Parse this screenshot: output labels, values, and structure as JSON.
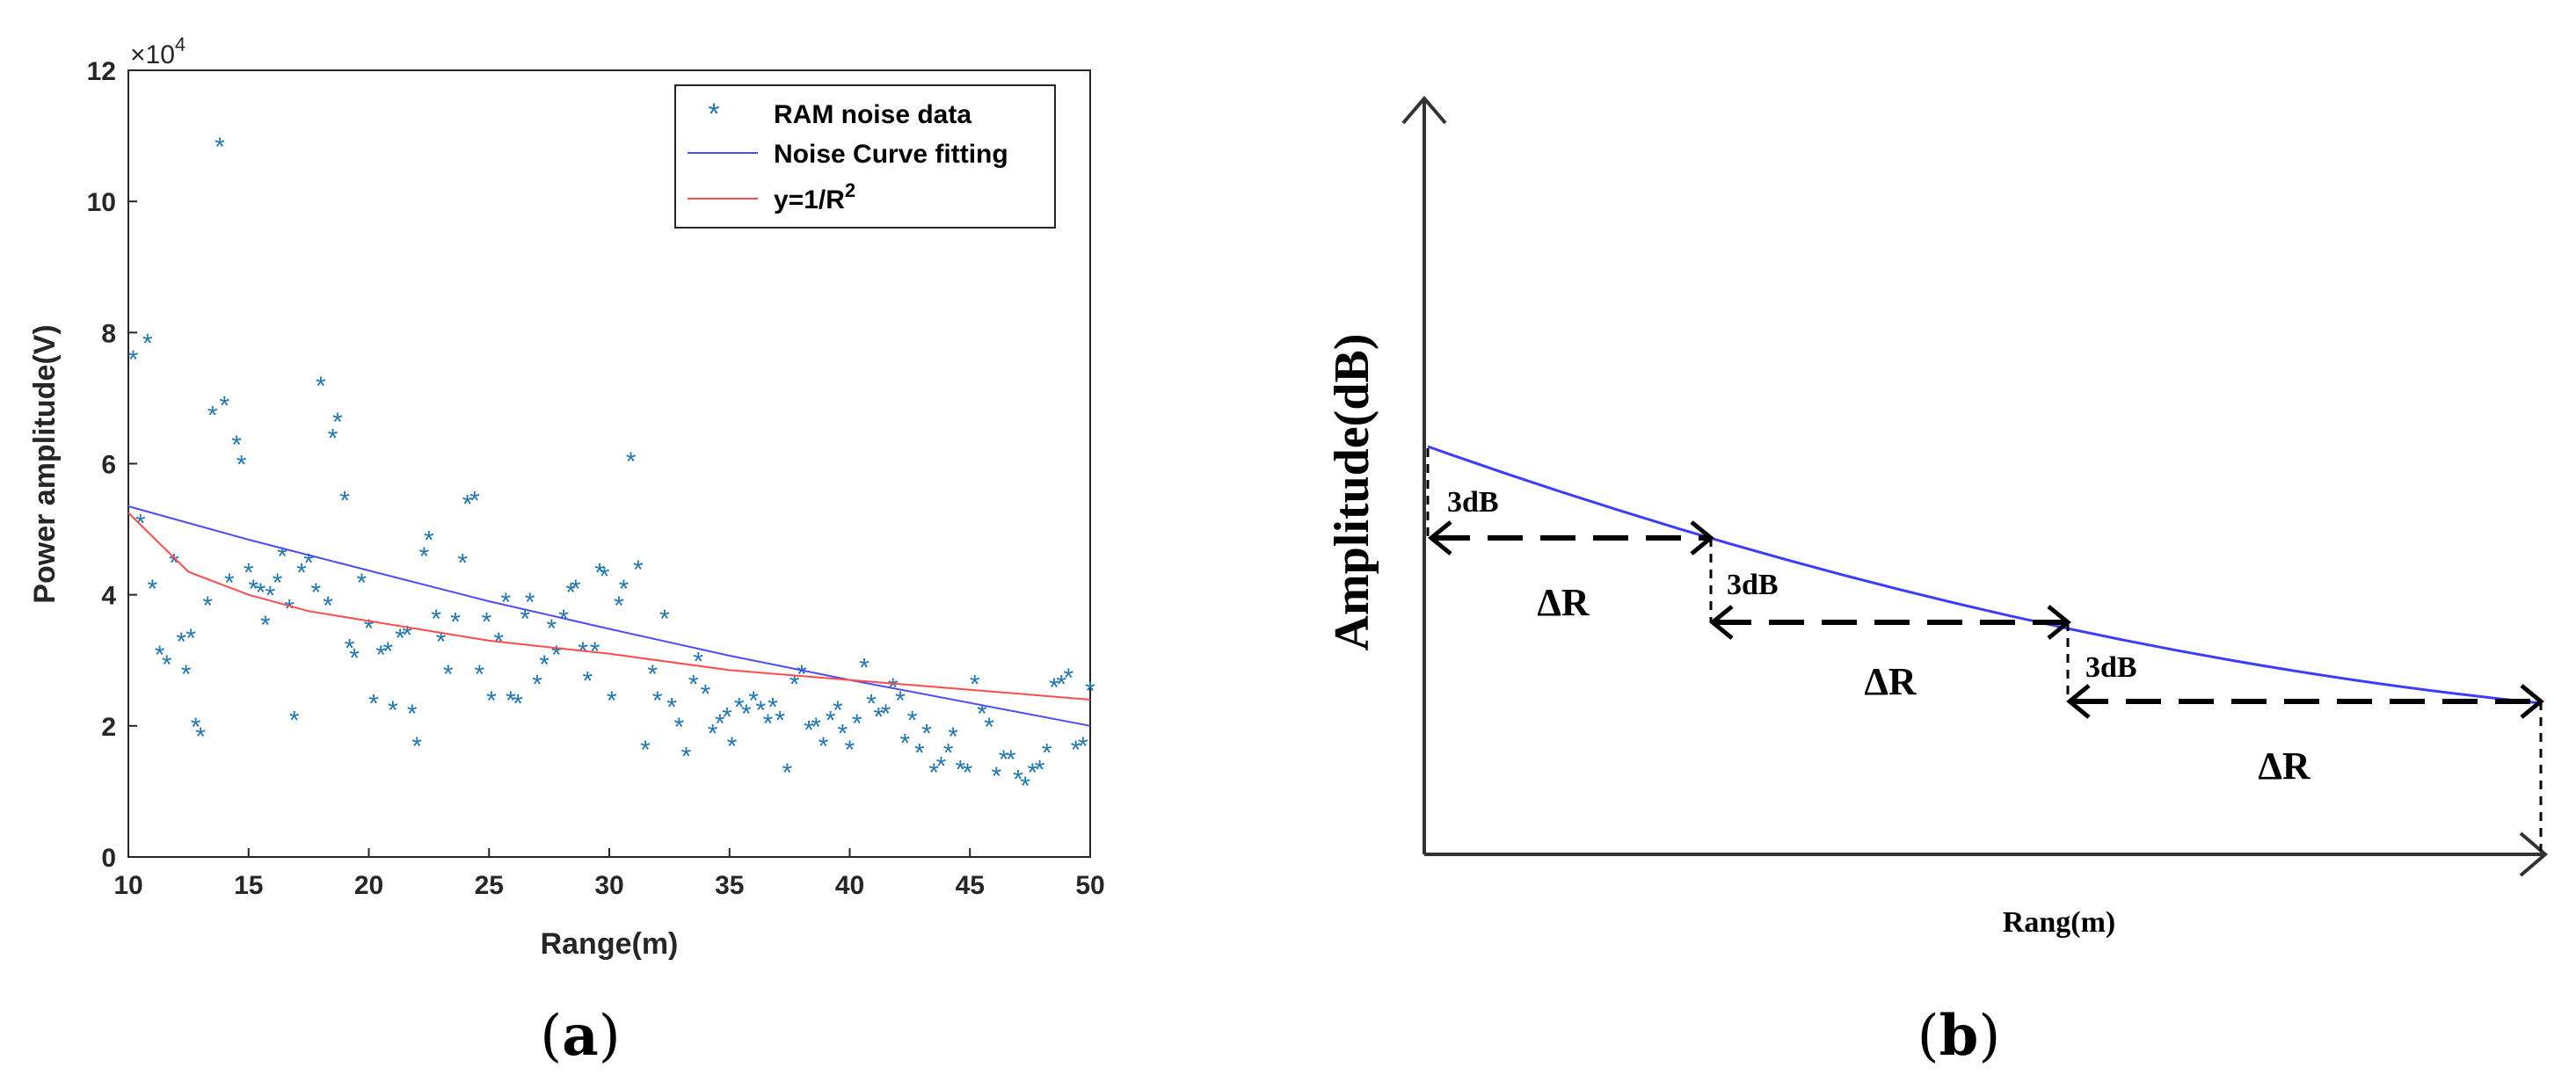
{
  "chart_data": [
    {
      "panel": "a",
      "type": "scatter",
      "caption_letter": "a",
      "xlabel": "Range(m)",
      "ylabel": "Power amplitude(V)",
      "y_exponent": "10",
      "y_exponent_power": "4",
      "xlim": [
        10,
        50
      ],
      "ylim": [
        0,
        120000
      ],
      "xticks": [
        10,
        15,
        20,
        25,
        30,
        35,
        40,
        45,
        50
      ],
      "yticks": [
        0,
        20000,
        40000,
        60000,
        80000,
        100000,
        120000
      ],
      "ytick_labels": [
        "0",
        "2",
        "4",
        "6",
        "8",
        "10",
        "12"
      ],
      "legend_position": "top-right",
      "legend": {
        "scatter_label": "RAM noise data",
        "fit_label": "Noise Curve fitting",
        "inv_label_prefix": "y=1/R",
        "inv_label_sup": "2"
      },
      "colors": {
        "scatter": "#1f77b4",
        "fit": "#4b4bff",
        "inverse": "#ff4b4b"
      },
      "series": [
        {
          "name": "RAM noise data",
          "kind": "scatter",
          "points": [
            [
              10.2,
              76000
            ],
            [
              10.5,
              51000
            ],
            [
              10.8,
              78500
            ],
            [
              11.0,
              41000
            ],
            [
              11.3,
              31000
            ],
            [
              11.6,
              29500
            ],
            [
              11.9,
              45000
            ],
            [
              12.2,
              33000
            ],
            [
              12.4,
              28000
            ],
            [
              12.6,
              33500
            ],
            [
              12.8,
              20000
            ],
            [
              13.0,
              18500
            ],
            [
              13.3,
              38500
            ],
            [
              13.5,
              67500
            ],
            [
              13.8,
              108500
            ],
            [
              14.0,
              69000
            ],
            [
              14.2,
              42000
            ],
            [
              14.5,
              63000
            ],
            [
              14.7,
              60000
            ],
            [
              15.0,
              43500
            ],
            [
              15.2,
              41000
            ],
            [
              15.5,
              40500
            ],
            [
              15.7,
              35500
            ],
            [
              15.9,
              40000
            ],
            [
              16.2,
              42000
            ],
            [
              16.4,
              46000
            ],
            [
              16.7,
              38000
            ],
            [
              16.9,
              21000
            ],
            [
              17.2,
              43500
            ],
            [
              17.5,
              45000
            ],
            [
              17.8,
              40500
            ],
            [
              18.0,
              72000
            ],
            [
              18.3,
              38500
            ],
            [
              18.5,
              64000
            ],
            [
              18.7,
              66500
            ],
            [
              19.0,
              54500
            ],
            [
              19.2,
              32000
            ],
            [
              19.4,
              30500
            ],
            [
              19.7,
              42000
            ],
            [
              20.0,
              35000
            ],
            [
              20.2,
              23500
            ],
            [
              20.5,
              31000
            ],
            [
              20.8,
              31500
            ],
            [
              21.0,
              22500
            ],
            [
              21.3,
              33500
            ],
            [
              21.6,
              34000
            ],
            [
              21.8,
              22000
            ],
            [
              22.0,
              17000
            ],
            [
              22.3,
              46000
            ],
            [
              22.5,
              48500
            ],
            [
              22.8,
              36500
            ],
            [
              23.0,
              33000
            ],
            [
              23.3,
              28000
            ],
            [
              23.6,
              36000
            ],
            [
              23.9,
              45000
            ],
            [
              24.1,
              54000
            ],
            [
              24.4,
              54500
            ],
            [
              24.6,
              28000
            ],
            [
              24.9,
              36000
            ],
            [
              25.1,
              24000
            ],
            [
              25.4,
              33000
            ],
            [
              25.7,
              39000
            ],
            [
              25.9,
              24000
            ],
            [
              26.2,
              23500
            ],
            [
              26.5,
              36500
            ],
            [
              26.7,
              39000
            ],
            [
              27.0,
              26500
            ],
            [
              27.3,
              29500
            ],
            [
              27.6,
              35000
            ],
            [
              27.8,
              31000
            ],
            [
              28.1,
              36500
            ],
            [
              28.4,
              40500
            ],
            [
              28.6,
              41000
            ],
            [
              28.9,
              31500
            ],
            [
              29.1,
              27000
            ],
            [
              29.4,
              31500
            ],
            [
              29.6,
              43500
            ],
            [
              29.8,
              43000
            ],
            [
              30.1,
              24000
            ],
            [
              30.4,
              38500
            ],
            [
              30.6,
              41000
            ],
            [
              30.9,
              60500
            ],
            [
              31.2,
              44000
            ],
            [
              31.5,
              16500
            ],
            [
              31.8,
              28000
            ],
            [
              32.0,
              24000
            ],
            [
              32.3,
              36500
            ],
            [
              32.6,
              23000
            ],
            [
              32.9,
              20000
            ],
            [
              33.2,
              15500
            ],
            [
              33.5,
              26500
            ],
            [
              33.7,
              30000
            ],
            [
              34.0,
              25000
            ],
            [
              34.3,
              19000
            ],
            [
              34.6,
              20500
            ],
            [
              34.9,
              21500
            ],
            [
              35.1,
              17000
            ],
            [
              35.4,
              23000
            ],
            [
              35.7,
              22000
            ],
            [
              36.0,
              24000
            ],
            [
              36.3,
              22500
            ],
            [
              36.6,
              20500
            ],
            [
              36.8,
              23000
            ],
            [
              37.1,
              21000
            ],
            [
              37.4,
              13000
            ],
            [
              37.7,
              26500
            ],
            [
              38.0,
              28000
            ],
            [
              38.3,
              19500
            ],
            [
              38.6,
              20000
            ],
            [
              38.9,
              17000
            ],
            [
              39.2,
              21000
            ],
            [
              39.5,
              22500
            ],
            [
              39.7,
              19000
            ],
            [
              40.0,
              16500
            ],
            [
              40.3,
              20500
            ],
            [
              40.6,
              29000
            ],
            [
              40.9,
              23500
            ],
            [
              41.2,
              21500
            ],
            [
              41.5,
              22000
            ],
            [
              41.8,
              26000
            ],
            [
              42.1,
              24000
            ],
            [
              42.3,
              17500
            ],
            [
              42.6,
              21000
            ],
            [
              42.9,
              16000
            ],
            [
              43.2,
              19000
            ],
            [
              43.5,
              13000
            ],
            [
              43.8,
              14000
            ],
            [
              44.1,
              16000
            ],
            [
              44.3,
              18500
            ],
            [
              44.6,
              13500
            ],
            [
              44.9,
              13000
            ],
            [
              45.2,
              26500
            ],
            [
              45.5,
              22000
            ],
            [
              45.8,
              20000
            ],
            [
              46.1,
              12500
            ],
            [
              46.4,
              15000
            ],
            [
              46.7,
              15000
            ],
            [
              47.0,
              12000
            ],
            [
              47.3,
              11000
            ],
            [
              47.6,
              13000
            ],
            [
              47.9,
              13500
            ],
            [
              48.2,
              16000
            ],
            [
              48.5,
              26000
            ],
            [
              48.8,
              26500
            ],
            [
              49.1,
              27500
            ],
            [
              49.4,
              16500
            ],
            [
              49.7,
              17000
            ],
            [
              50.0,
              25500
            ]
          ]
        },
        {
          "name": "Noise Curve fitting",
          "kind": "line",
          "x": [
            10,
            15,
            20,
            25,
            30,
            35,
            40,
            45,
            50
          ],
          "y": [
            53500,
            48400,
            43700,
            39000,
            34800,
            30700,
            27000,
            23500,
            20000
          ]
        },
        {
          "name": "y=1/R^2",
          "kind": "line",
          "x": [
            10,
            12.5,
            15,
            17.5,
            20,
            25,
            30,
            35,
            40,
            45,
            50
          ],
          "y": [
            52500,
            43500,
            40000,
            37500,
            36000,
            33000,
            31000,
            28500,
            27000,
            25500,
            24000
          ]
        }
      ]
    },
    {
      "panel": "b",
      "type": "diagram",
      "caption_letter": "b",
      "xlabel": "Rang(m)",
      "ylabel": "Amplitude(dB)",
      "step_label": "3dB",
      "range_label": "ΔR",
      "curve_color": "#3c3cff"
    }
  ]
}
